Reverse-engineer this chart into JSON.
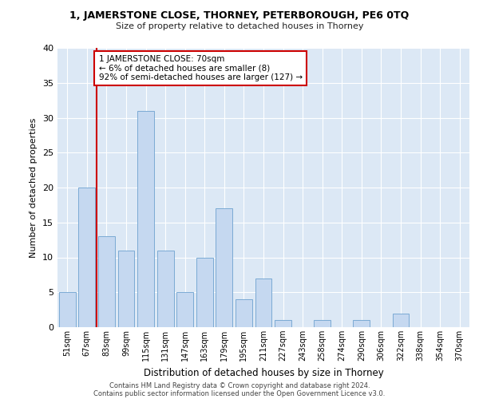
{
  "title1": "1, JAMERSTONE CLOSE, THORNEY, PETERBOROUGH, PE6 0TQ",
  "title2": "Size of property relative to detached houses in Thorney",
  "xlabel": "Distribution of detached houses by size in Thorney",
  "ylabel": "Number of detached properties",
  "categories": [
    "51sqm",
    "67sqm",
    "83sqm",
    "99sqm",
    "115sqm",
    "131sqm",
    "147sqm",
    "163sqm",
    "179sqm",
    "195sqm",
    "211sqm",
    "227sqm",
    "243sqm",
    "258sqm",
    "274sqm",
    "290sqm",
    "306sqm",
    "322sqm",
    "338sqm",
    "354sqm",
    "370sqm"
  ],
  "values": [
    5,
    20,
    13,
    11,
    31,
    11,
    5,
    10,
    17,
    4,
    7,
    1,
    0,
    1,
    0,
    1,
    0,
    2,
    0,
    0,
    0
  ],
  "bar_color": "#c5d8f0",
  "bar_edge_color": "#7baad4",
  "bar_width": 0.85,
  "vline_x": 1.5,
  "vline_color": "#cc0000",
  "annotation_text": "1 JAMERSTONE CLOSE: 70sqm\n← 6% of detached houses are smaller (8)\n92% of semi-detached houses are larger (127) →",
  "annotation_box_color": "#ffffff",
  "annotation_box_edge": "#cc0000",
  "ylim": [
    0,
    40
  ],
  "yticks": [
    0,
    5,
    10,
    15,
    20,
    25,
    30,
    35,
    40
  ],
  "background_color": "#dce8f5",
  "grid_color": "#ffffff",
  "fig_background": "#ffffff",
  "footer1": "Contains HM Land Registry data © Crown copyright and database right 2024.",
  "footer2": "Contains public sector information licensed under the Open Government Licence v3.0."
}
